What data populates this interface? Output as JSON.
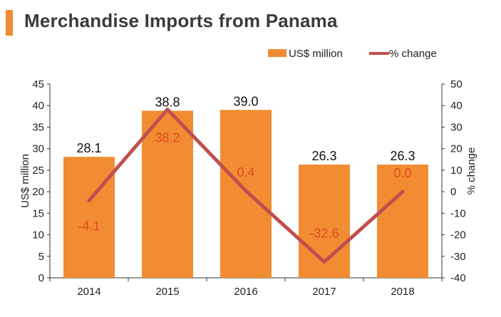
{
  "header": {
    "title": "Merchandise Imports from Panama"
  },
  "colors": {
    "accent": "#f28c33",
    "bar": "#f28c33",
    "line": "#c0504d",
    "pct_label": "#e04a1f",
    "axis": "#333333"
  },
  "chart_data": {
    "type": "bar",
    "title": "Merchandise Imports from Panama",
    "categories": [
      "2014",
      "2015",
      "2016",
      "2017",
      "2018"
    ],
    "series": [
      {
        "name": "US$ million",
        "type": "bar",
        "axis": "left",
        "values": [
          28.1,
          38.8,
          39.0,
          26.3,
          26.3
        ],
        "labels": [
          "28.1",
          "38.8",
          "39.0",
          "26.3",
          "26.3"
        ]
      },
      {
        "name": "% change",
        "type": "line",
        "axis": "right",
        "values": [
          -4.1,
          38.2,
          0.4,
          -32.6,
          0.0
        ],
        "labels": [
          "-4.1",
          "38.2",
          "0.4",
          "-32.6",
          "0.0"
        ]
      }
    ],
    "ylabel": "US$ million",
    "y2label": "% change",
    "ylim": [
      0,
      45
    ],
    "y2lim": [
      -40,
      50
    ],
    "yticks": [
      "0",
      "5",
      "10",
      "15",
      "20",
      "25",
      "30",
      "35",
      "40",
      "45"
    ],
    "y2ticks": [
      "-40",
      "-30",
      "-20",
      "-10",
      "0",
      "10",
      "20",
      "30",
      "40",
      "50"
    ],
    "legend_position": "top-right",
    "grid": false
  }
}
